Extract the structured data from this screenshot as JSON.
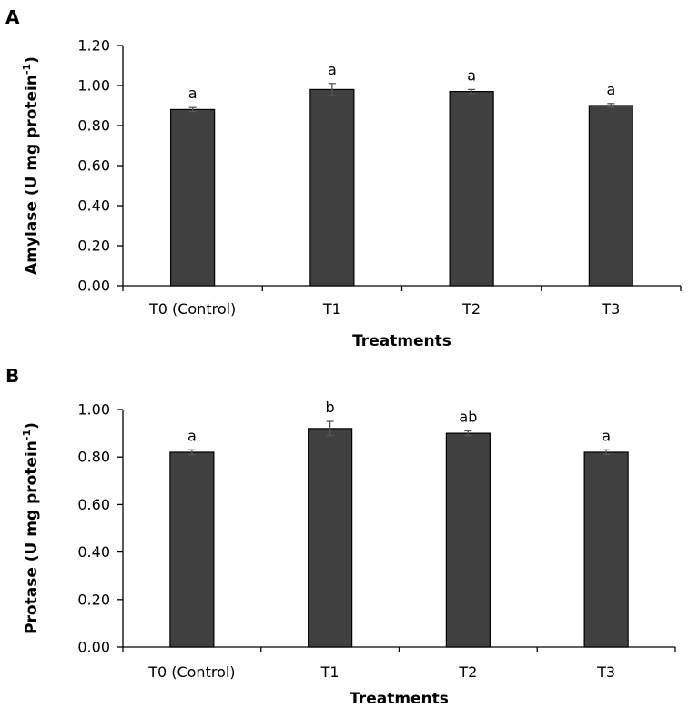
{
  "chart_data": [
    {
      "panel": "A",
      "type": "bar",
      "categories": [
        "T0 (Control)",
        "T1",
        "T2",
        "T3"
      ],
      "values": [
        0.88,
        0.98,
        0.97,
        0.9
      ],
      "errors": [
        0.01,
        0.03,
        0.01,
        0.01
      ],
      "significance": [
        "a",
        "a",
        "a",
        "a"
      ],
      "xlabel": "Treatments",
      "ylabel_main": "Amylase (U mg protein",
      "ylabel_sup": "-1",
      "ylabel_end": ")",
      "ylim": [
        0,
        1.2
      ],
      "yticks": [
        "0.00",
        "0.20",
        "0.40",
        "0.60",
        "0.80",
        "1.00",
        "1.20"
      ],
      "bar_color": "#404040",
      "grid": false
    },
    {
      "panel": "B",
      "type": "bar",
      "categories": [
        "T0 (Control)",
        "T1",
        "T2",
        "T3"
      ],
      "values": [
        0.82,
        0.92,
        0.9,
        0.82
      ],
      "errors": [
        0.01,
        0.03,
        0.01,
        0.01
      ],
      "significance": [
        "a",
        "b",
        "ab",
        "a"
      ],
      "xlabel": "Treatments",
      "ylabel_main": "Protase (U mg protein",
      "ylabel_sup": "-1",
      "ylabel_end": ")",
      "ylim": [
        0,
        1.0
      ],
      "yticks": [
        "0.00",
        "0.20",
        "0.40",
        "0.60",
        "0.80",
        "1.00"
      ],
      "bar_color": "#404040",
      "grid": false
    }
  ]
}
